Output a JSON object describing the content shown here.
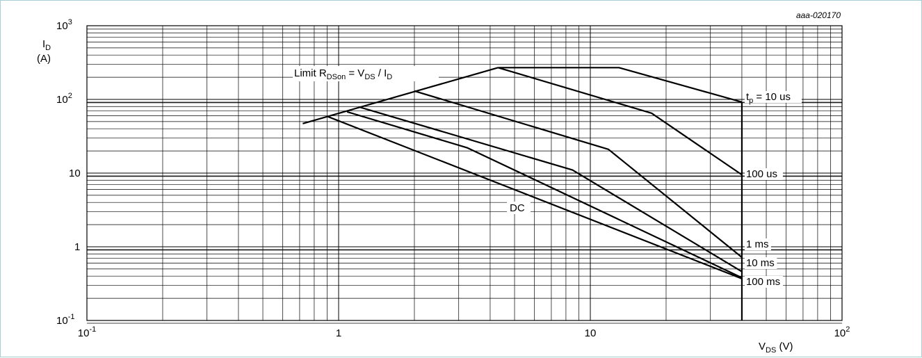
{
  "chart_data": {
    "type": "line",
    "x_scale": "log",
    "y_scale": "log",
    "xlim": [
      0.1,
      100
    ],
    "ylim": [
      0.1,
      1000
    ],
    "grid": true,
    "figure_code": "aaa-020170",
    "y_axis_label": {
      "main": "I",
      "sub": "D",
      "unit": "(A)"
    },
    "x_axis_label": {
      "main": "V",
      "sub": "DS",
      "unit": " (V)"
    },
    "x_ticks": [
      {
        "value": 0.1,
        "base": "10",
        "exp": "-1"
      },
      {
        "value": 1,
        "base": "1",
        "exp": ""
      },
      {
        "value": 10,
        "base": "10",
        "exp": ""
      },
      {
        "value": 100,
        "base": "10",
        "exp": "2"
      }
    ],
    "y_ticks": [
      {
        "value": 1000,
        "base": "10",
        "exp": "3"
      },
      {
        "value": 100,
        "base": "10",
        "exp": "2"
      },
      {
        "value": 10,
        "base": "10",
        "exp": ""
      },
      {
        "value": 1,
        "base": "1",
        "exp": ""
      },
      {
        "value": 0.1,
        "base": "10",
        "exp": "-1"
      }
    ],
    "limit_label": {
      "a": "Limit R",
      "a_sub": "DSon",
      "b": " = V",
      "b_sub": "DS",
      "c": " / I",
      "c_sub": "D"
    },
    "limit_line": {
      "x": [
        0.72,
        4.3
      ],
      "y": [
        47,
        270
      ]
    },
    "max_vds": 40,
    "series": [
      {
        "name": "t",
        "name_sub": "p",
        "name_suffix": " = 10 us",
        "x": [
          4.3,
          13,
          40
        ],
        "y": [
          270,
          270,
          92
        ]
      },
      {
        "name": "100 us",
        "x": [
          4.3,
          17.5,
          40
        ],
        "y": [
          270,
          65,
          9.5
        ]
      },
      {
        "name": "1 ms",
        "x": [
          2.0,
          11.8,
          40
        ],
        "y": [
          130,
          21,
          0.72
        ]
      },
      {
        "name": "10 ms",
        "x": [
          1.22,
          8.5,
          40
        ],
        "y": [
          78,
          11,
          0.46
        ]
      },
      {
        "name": "100 ms",
        "x": [
          1.08,
          3.25,
          40
        ],
        "y": [
          68,
          22,
          0.38
        ]
      },
      {
        "name": "DC",
        "x": [
          0.9,
          40
        ],
        "y": [
          59,
          0.37
        ]
      }
    ],
    "dc_label": "DC"
  }
}
